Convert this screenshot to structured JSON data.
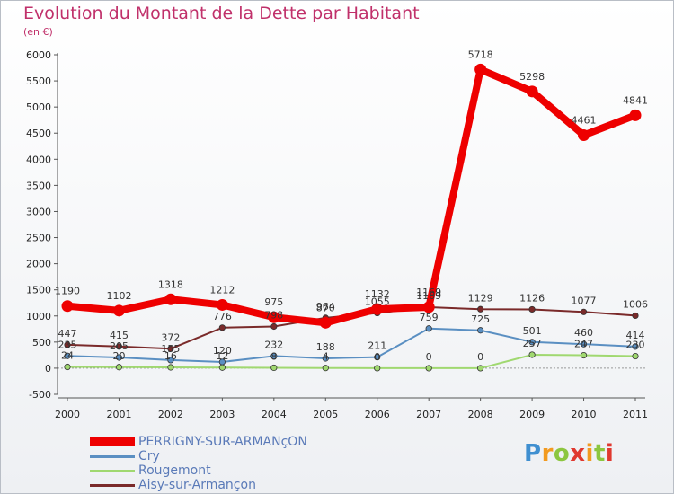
{
  "title": "Evolution du Montant de la Dette par Habitant",
  "subtitle": "(en €)",
  "logo": {
    "text": "Proxiti",
    "colors": [
      "#3f8fd0",
      "#f29a1f",
      "#8cc63f",
      "#e0382e"
    ]
  },
  "chart_data": {
    "type": "line",
    "title": "Evolution du Montant de la Dette par Habitant",
    "subtitle": "(en €)",
    "x": [
      "2000",
      "2001",
      "2002",
      "2003",
      "2004",
      "2005",
      "2006",
      "2007",
      "2008",
      "2009",
      "2010",
      "2011"
    ],
    "ylim": [
      -500,
      6000
    ],
    "yticks": [
      "-500",
      "0",
      "500",
      "1000",
      "1500",
      "2000",
      "2500",
      "3000",
      "3500",
      "4000",
      "4500",
      "5000",
      "5500",
      "6000"
    ],
    "grid": false,
    "legend_position": "bottom-left",
    "series": [
      {
        "name": "PERRIGNY-SUR-ARMANçON",
        "color": "#ee0000",
        "emphasis": true,
        "values": [
          1190,
          1102,
          1318,
          1212,
          975,
          870,
          1132,
          1169,
          5718,
          5298,
          4461,
          4841
        ],
        "labels": [
          "1190",
          "1102",
          "1318",
          "1212",
          "975",
          "870",
          "1132",
          "1169",
          "5718",
          "5298",
          "4461",
          "4841"
        ]
      },
      {
        "name": "Cry",
        "color": "#5a8fc2",
        "values": [
          235,
          205,
          155,
          120,
          232,
          188,
          211,
          759,
          725,
          501,
          460,
          414
        ],
        "labels": [
          "235",
          "205",
          "155",
          "120",
          "232",
          "188",
          "211",
          "759",
          "725",
          "501",
          "460",
          "414"
        ]
      },
      {
        "name": "Rougemont",
        "color": "#a0d870",
        "values": [
          24,
          20,
          16,
          12,
          8,
          4,
          0,
          0,
          0,
          257,
          247,
          230
        ],
        "labels": [
          "24",
          "20",
          "16",
          "12",
          "8",
          "4",
          "0",
          "0",
          "0",
          "257",
          "247",
          "230"
        ]
      },
      {
        "name": "Aisy-sur-Armançon",
        "color": "#7a2a2a",
        "values": [
          447,
          415,
          372,
          776,
          798,
          964,
          1055,
          1169,
          1129,
          1126,
          1077,
          1006
        ],
        "labels": [
          "447",
          "415",
          "372",
          "776",
          "798",
          "964",
          "1055",
          "1169",
          "1129",
          "1126",
          "1077",
          "1006"
        ]
      }
    ]
  }
}
